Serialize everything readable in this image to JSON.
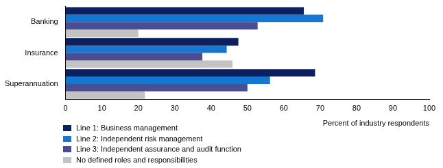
{
  "chart_data": {
    "type": "bar",
    "orientation": "horizontal",
    "categories": [
      "Banking",
      "Insurance",
      "Superannuation"
    ],
    "series": [
      {
        "name": "Line 1: Business management",
        "color": "#0c1f5e",
        "values": [
          65.5,
          47.5,
          68.6
        ]
      },
      {
        "name": "Line 2: Independent risk management",
        "color": "#1677d2",
        "values": [
          70.8,
          44.3,
          56.2
        ]
      },
      {
        "name": "Line 3: Independent assurance and audit function",
        "color": "#4a4d94",
        "values": [
          52.8,
          37.6,
          50.0
        ]
      },
      {
        "name": "No defined roles and responsibilities",
        "color": "#c3c3c3",
        "values": [
          20.0,
          45.9,
          21.8
        ]
      }
    ],
    "xlabel": "Percent of industry respondents",
    "xlim": [
      0,
      100
    ],
    "xticks": [
      0,
      10,
      20,
      30,
      40,
      50,
      60,
      70,
      80,
      90,
      100
    ],
    "grid": false,
    "legend": "bottom"
  }
}
